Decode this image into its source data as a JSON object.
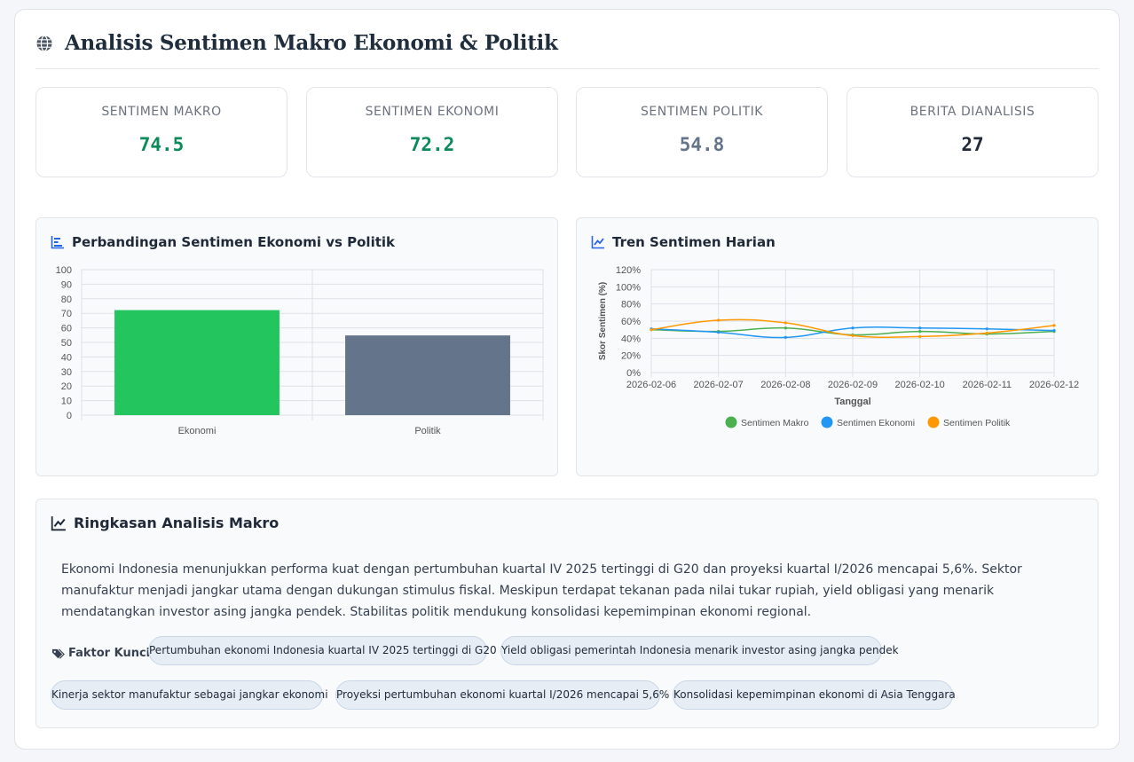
{
  "header": {
    "title": "Analisis Sentimen Makro Ekonomi & Politik",
    "icon": "globe-icon"
  },
  "stats": [
    {
      "label": "SENTIMEN MAKRO",
      "value": "74.5",
      "color": "#0b8a5a"
    },
    {
      "label": "SENTIMEN EKONOMI",
      "value": "72.2",
      "color": "#0b8a5a"
    },
    {
      "label": "SENTIMEN POLITIK",
      "value": "54.8",
      "color": "#64748b"
    },
    {
      "label": "BERITA DIANALISIS",
      "value": "27",
      "color": "#1f2937"
    }
  ],
  "bar_card": {
    "title": "Perbandingan Sentimen Ekonomi vs Politik",
    "icon": "bar-chart-icon"
  },
  "line_card": {
    "title": "Tren Sentimen Harian",
    "icon": "line-chart-icon"
  },
  "summary": {
    "title": "Ringkasan Analisis Makro",
    "icon": "trend-icon",
    "text": "Ekonomi Indonesia menunjukkan performa kuat dengan pertumbuhan kuartal IV 2025 tertinggi di G20 dan proyeksi kuartal I/2026 mencapai 5,6%. Sektor manufaktur menjadi jangkar utama dengan dukungan stimulus fiskal. Meskipun terdapat tekanan pada nilai tukar rupiah, yield obligasi yang menarik mendatangkan investor asing jangka pendek. Stabilitas politik mendukung konsolidasi kepemimpinan ekonomi regional.",
    "factors_label": "Faktor Kunci:",
    "factors_icon": "tags-icon",
    "factors": [
      "Pertumbuhan ekonomi Indonesia kuartal IV 2025 tertinggi di G20",
      "Yield obligasi pemerintah Indonesia menarik investor asing jangka pendek",
      "Kinerja sektor manufaktur sebagai jangkar ekonomi",
      "Proyeksi pertumbuhan ekonomi kuartal I/2026 mencapai 5,6%",
      "Konsolidasi kepemimpinan ekonomi di Asia Tenggara"
    ]
  },
  "chart_data": [
    {
      "type": "bar",
      "categories": [
        "Ekonomi",
        "Politik"
      ],
      "values": [
        72.2,
        54.8
      ],
      "colors": [
        "#22c55e",
        "#64748b"
      ],
      "ylim": [
        0,
        100
      ],
      "yticks": [
        0,
        10,
        20,
        30,
        40,
        50,
        60,
        70,
        80,
        90,
        100
      ],
      "grid": true,
      "legend": "none"
    },
    {
      "type": "line",
      "x": [
        "2026-02-06",
        "2026-02-07",
        "2026-02-08",
        "2026-02-09",
        "2026-02-10",
        "2026-02-11",
        "2026-02-12"
      ],
      "series": [
        {
          "name": "Sentimen Makro",
          "color": "#4caf50",
          "values": [
            50,
            48,
            52,
            44,
            48,
            45,
            48
          ]
        },
        {
          "name": "Sentimen Ekonomi",
          "color": "#2196f3",
          "values": [
            51,
            47,
            41,
            52,
            52,
            51,
            49
          ]
        },
        {
          "name": "Sentimen Politik",
          "color": "#ff9800",
          "values": [
            50,
            61,
            58,
            43,
            42,
            46,
            55
          ]
        }
      ],
      "ylim": [
        0,
        120
      ],
      "yticks": [
        "0%",
        "20%",
        "40%",
        "60%",
        "80%",
        "100%",
        "120%"
      ],
      "xlabel": "Tanggal",
      "ylabel": "Skor Sentimen (%)",
      "grid": true,
      "legend": "bottom"
    }
  ]
}
